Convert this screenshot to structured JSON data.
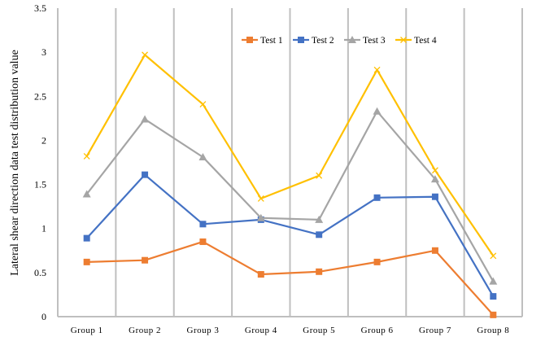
{
  "chart_data": {
    "type": "line",
    "title": "",
    "xlabel": "",
    "ylabel": "Lateral shear direction data test distribution value",
    "ylim": [
      0,
      3.5
    ],
    "yticks": [
      "0",
      "0.5",
      "1",
      "1.5",
      "2",
      "2.5",
      "3",
      "3.5"
    ],
    "ytick_values": [
      0,
      0.5,
      1,
      1.5,
      2,
      2.5,
      3,
      3.5
    ],
    "categories": [
      "Group 1",
      "Group 2",
      "Group 3",
      "Group 4",
      "Group 5",
      "Group 6",
      "Group 7",
      "Group 8"
    ],
    "grid": "vertical",
    "legend_position": "top-right",
    "series": [
      {
        "name": "Test 1",
        "color": "#ED7D31",
        "marker": "square",
        "values": [
          0.62,
          0.64,
          0.85,
          0.48,
          0.51,
          0.62,
          0.75,
          0.02
        ]
      },
      {
        "name": "Test 2",
        "color": "#4472C4",
        "marker": "square",
        "values": [
          0.89,
          1.61,
          1.05,
          1.1,
          0.93,
          1.35,
          1.36,
          0.23
        ]
      },
      {
        "name": "Test 3",
        "color": "#A5A5A5",
        "marker": "triangle",
        "values": [
          1.39,
          2.24,
          1.81,
          1.12,
          1.1,
          2.33,
          1.56,
          0.4
        ]
      },
      {
        "name": "Test 4",
        "color": "#FFC000",
        "marker": "x",
        "values": [
          1.82,
          2.97,
          2.41,
          1.34,
          1.6,
          2.8,
          1.66,
          0.69
        ]
      }
    ]
  }
}
